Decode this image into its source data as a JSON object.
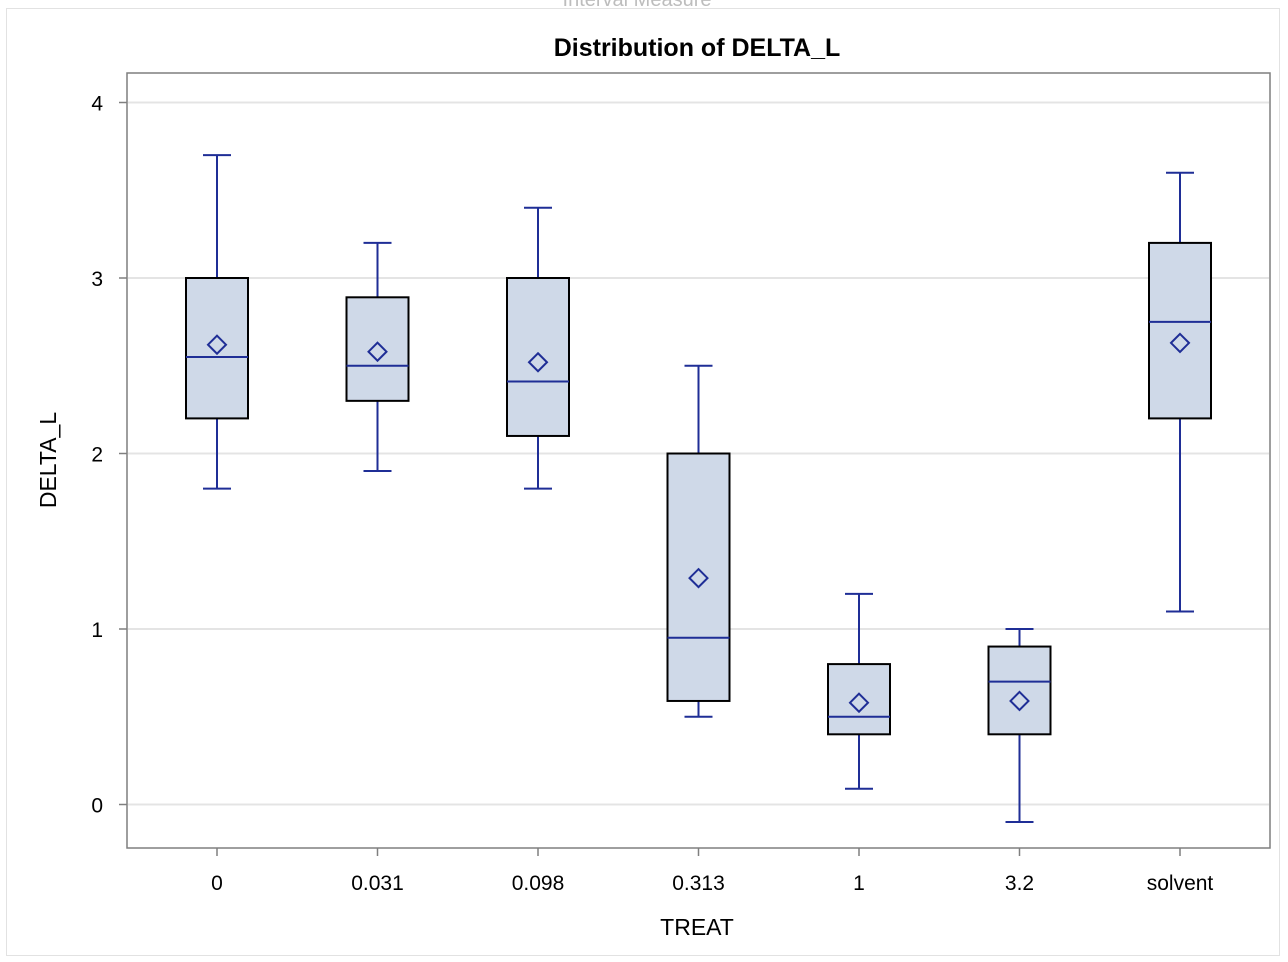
{
  "top_cut_text": "Interval Measure",
  "chart_data": {
    "type": "box",
    "title": "Distribution of DELTA_L",
    "xlabel": "TREAT",
    "ylabel": "DELTA_L",
    "categories": [
      "0",
      "0.031",
      "0.098",
      "0.313",
      "1",
      "3.2",
      "solvent"
    ],
    "ylim": [
      -0.25,
      4.15
    ],
    "yticks": [
      0,
      1,
      2,
      3,
      4
    ],
    "grid": true,
    "legend": "none",
    "boxes": [
      {
        "category": "0",
        "whisker_low": 1.8,
        "q1": 2.2,
        "median": 2.55,
        "q3": 3.0,
        "whisker_high": 3.7,
        "mean": 2.62
      },
      {
        "category": "0.031",
        "whisker_low": 1.9,
        "q1": 2.3,
        "median": 2.5,
        "q3": 2.89,
        "whisker_high": 3.2,
        "mean": 2.58
      },
      {
        "category": "0.098",
        "whisker_low": 1.8,
        "q1": 2.1,
        "median": 2.41,
        "q3": 3.0,
        "whisker_high": 3.4,
        "mean": 2.52
      },
      {
        "category": "0.313",
        "whisker_low": 0.5,
        "q1": 0.59,
        "median": 0.95,
        "q3": 2.0,
        "whisker_high": 2.5,
        "mean": 1.29
      },
      {
        "category": "1",
        "whisker_low": 0.09,
        "q1": 0.4,
        "median": 0.5,
        "q3": 0.8,
        "whisker_high": 1.2,
        "mean": 0.58
      },
      {
        "category": "3.2",
        "whisker_low": -0.1,
        "q1": 0.4,
        "median": 0.7,
        "q3": 0.9,
        "whisker_high": 1.0,
        "mean": 0.59
      },
      {
        "category": "solvent",
        "whisker_low": 1.1,
        "q1": 2.2,
        "median": 2.75,
        "q3": 3.2,
        "whisker_high": 3.6,
        "mean": 2.63
      }
    ],
    "colors": {
      "box_fill": "#cfd9e8",
      "box_stroke": "#000000",
      "median_line": "#1f2e96",
      "whisker": "#1f2e96",
      "mean_marker": "#1f2e96",
      "grid": "#e4e4e4",
      "axis": "#7f7f7f"
    }
  }
}
